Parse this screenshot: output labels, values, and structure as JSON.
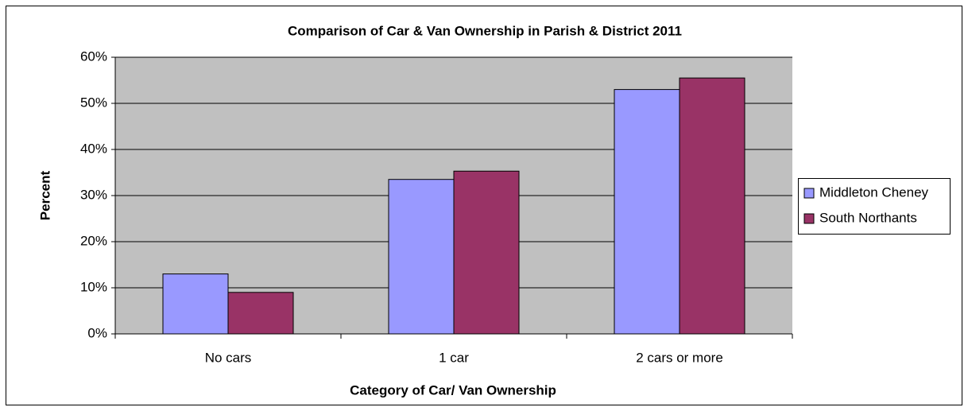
{
  "chart_data": {
    "type": "bar",
    "title": "Comparison of Car & Van Ownership in Parish & District 2011",
    "x_label": "Category of Car/ Van Ownership",
    "y_label": "Percent",
    "categories": [
      "No cars",
      "1 car",
      "2 cars or more"
    ],
    "series": [
      {
        "name": "Middleton Cheney",
        "color": "#9999ff",
        "values": [
          13,
          33.5,
          53
        ]
      },
      {
        "name": "South Northants",
        "color": "#993366",
        "values": [
          9,
          35.3,
          55.5
        ]
      }
    ],
    "ylim": [
      0,
      60
    ],
    "yticks": [
      {
        "value": 0,
        "label": "0%"
      },
      {
        "value": 10,
        "label": "10%"
      },
      {
        "value": 20,
        "label": "20%"
      },
      {
        "value": 30,
        "label": "30%"
      },
      {
        "value": 40,
        "label": "40%"
      },
      {
        "value": 50,
        "label": "50%"
      },
      {
        "value": 60,
        "label": "60%"
      }
    ],
    "grid": true,
    "legend": "right",
    "plot_background": "#c0c0c0"
  }
}
